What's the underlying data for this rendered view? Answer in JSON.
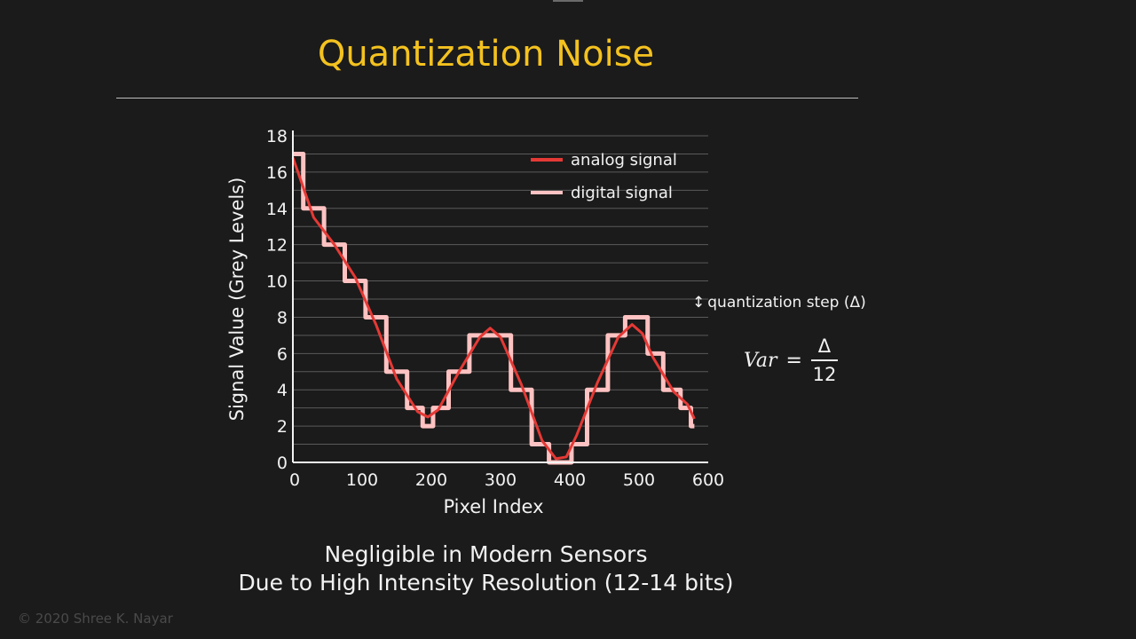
{
  "slide": {
    "title": "Quantization Noise",
    "step_note": "quantization step (Δ)",
    "formula": {
      "lhs": "Var",
      "equals": "=",
      "numerator": "Δ",
      "denominator": "12"
    },
    "caption_line1": "Negligible in Modern Sensors",
    "caption_line2": "Due to High Intensity Resolution (12-14 bits)",
    "copyright": "© 2020 Shree K. Nayar"
  },
  "colors": {
    "title": "#f4c21f",
    "analog": "#e53935",
    "digital": "#ffc2c2",
    "background": "#1b1b1b"
  },
  "chart_data": {
    "type": "line",
    "xlabel": "Pixel Index",
    "ylabel": "Signal Value (Grey Levels)",
    "xlim": [
      0,
      600
    ],
    "ylim": [
      0,
      18
    ],
    "xticks": [
      0,
      100,
      200,
      300,
      400,
      500,
      600
    ],
    "yticks": [
      0,
      2,
      4,
      6,
      8,
      10,
      12,
      14,
      16,
      18
    ],
    "grid": "horizontal at every grey level",
    "legend_position": "top-right",
    "series": [
      {
        "name": "analog signal",
        "x": [
          0,
          30,
          60,
          90,
          120,
          150,
          180,
          195,
          210,
          240,
          270,
          285,
          300,
          330,
          360,
          380,
          395,
          410,
          440,
          470,
          490,
          505,
          520,
          550,
          570,
          580
        ],
        "y": [
          16.8,
          13.5,
          12.0,
          10.2,
          7.6,
          4.6,
          2.8,
          2.5,
          2.9,
          5.0,
          6.9,
          7.4,
          6.9,
          4.3,
          1.2,
          0.2,
          0.3,
          1.5,
          4.4,
          6.9,
          7.6,
          7.1,
          5.8,
          3.9,
          3.2,
          2.4
        ]
      },
      {
        "name": "digital signal",
        "x": [
          0,
          30,
          60,
          90,
          120,
          150,
          180,
          195,
          210,
          240,
          270,
          285,
          300,
          330,
          360,
          380,
          395,
          410,
          440,
          470,
          490,
          505,
          520,
          550,
          570,
          580
        ],
        "y": [
          17,
          14,
          12,
          10,
          8,
          5,
          3,
          2,
          3,
          5,
          7,
          7,
          7,
          4,
          1,
          0,
          0,
          1,
          4,
          7,
          8,
          8,
          6,
          4,
          3,
          2
        ]
      }
    ]
  }
}
